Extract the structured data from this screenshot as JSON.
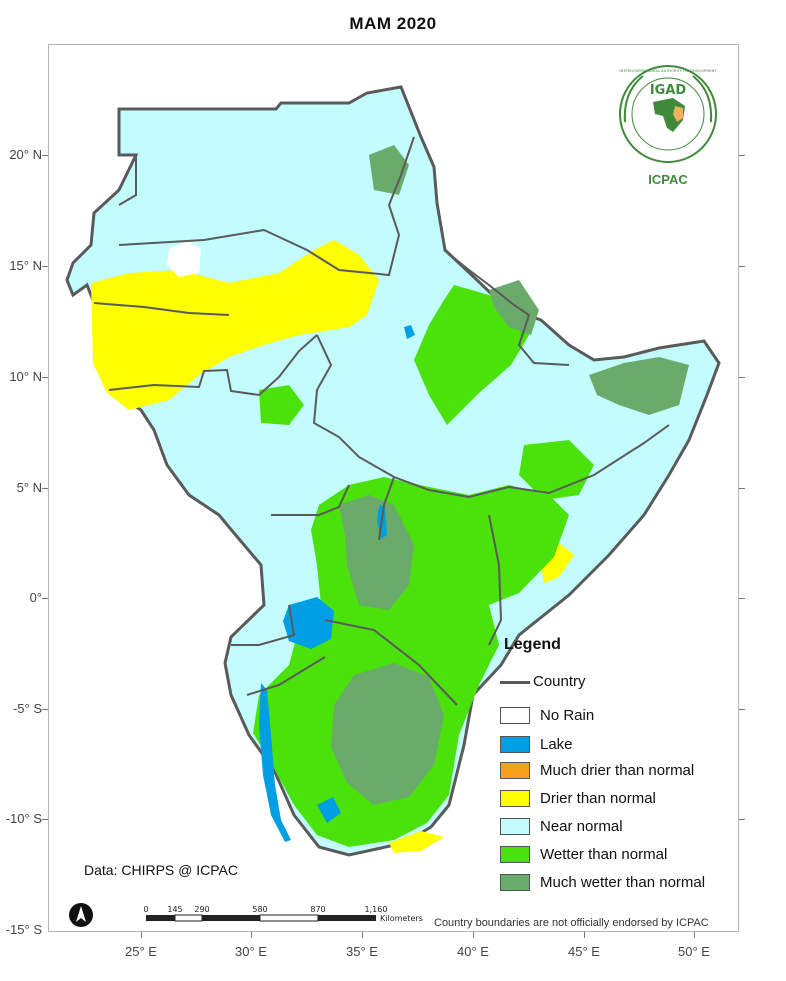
{
  "title": "MAM 2020",
  "lat_labels": [
    "20° N",
    "15° N",
    "10° N",
    "5° N",
    "0°",
    "-5° S",
    "-10° S",
    "-15° S"
  ],
  "lon_labels": [
    "25° E",
    "30° E",
    "35° E",
    "40° E",
    "45° E",
    "50° E"
  ],
  "legend": {
    "title": "Legend",
    "items": [
      {
        "label": "Country",
        "kind": "line",
        "color": "#5a5a5a"
      },
      {
        "label": "No Rain",
        "kind": "box",
        "color": "#ffffff"
      },
      {
        "label": "Lake",
        "kind": "box",
        "color": "#009fe3"
      },
      {
        "label": "Much drier than normal",
        "kind": "box",
        "color": "#f7a11a"
      },
      {
        "label": "Drier than normal",
        "kind": "box",
        "color": "#ffff00"
      },
      {
        "label": "Near normal",
        "kind": "box",
        "color": "#c2fcfc"
      },
      {
        "label": "Wetter than normal",
        "kind": "box",
        "color": "#4be10a"
      },
      {
        "label": "Much wetter than normal",
        "kind": "box",
        "color": "#6aaa6a"
      }
    ]
  },
  "data_credit": "Data: CHIRPS @ ICPAC",
  "disclaimer": "Country boundaries are not officially endorsed by ICPAC",
  "scale": {
    "ticks": [
      "0",
      "145",
      "290",
      "580",
      "870",
      "1,160"
    ],
    "unit": "Kilometers"
  },
  "logo": {
    "acronym": "IGAD",
    "ring_text": "INTERGOVERNMENTAL AUTHORITY ON DEVELOPMENT",
    "caption": "ICPAC"
  }
}
